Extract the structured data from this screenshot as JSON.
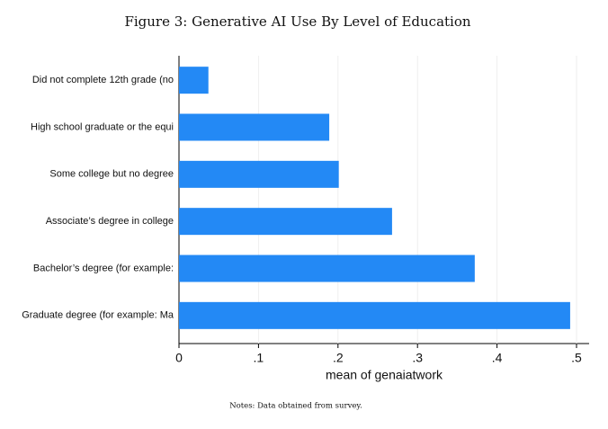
{
  "chart_data": {
    "type": "barh",
    "title": "Figure 3: Generative AI Use By Level of Education",
    "categories": [
      "Did not complete 12th grade (no",
      "High school graduate or the equi",
      "Some college but no degree",
      "Associate’s degree in college",
      "Bachelor’s degree (for example:",
      "Graduate degree (for example: Ma"
    ],
    "values": [
      0.037,
      0.189,
      0.201,
      0.268,
      0.372,
      0.492
    ],
    "color": "#2389f5",
    "xlim": [
      0,
      0.5
    ],
    "xticks": [
      0,
      {
        "value": 0.1,
        "label": ".1"
      },
      {
        "value": 0.2,
        "label": ".2"
      },
      {
        "value": 0.3,
        "label": ".3"
      },
      {
        "value": 0.4,
        "label": ".4"
      },
      {
        "value": 0.5,
        "label": ".5"
      }
    ],
    "xlabel": "mean of genaiatwork",
    "note": "Notes: Data obtained from survey.",
    "grid": true
  }
}
